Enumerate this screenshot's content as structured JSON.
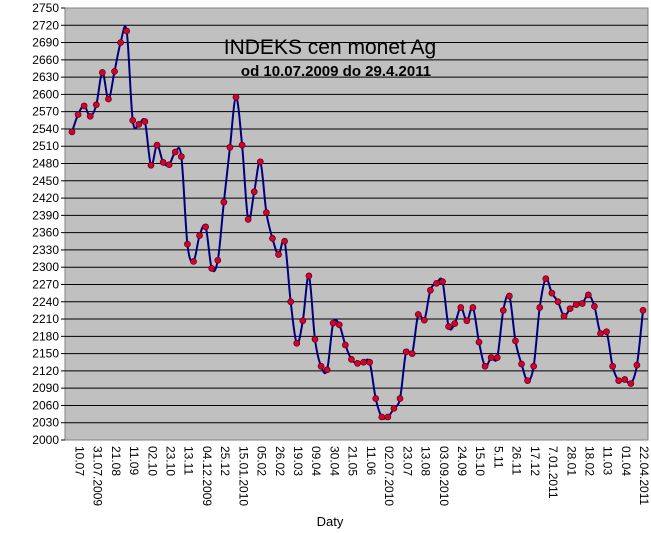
{
  "chart_data": {
    "type": "line",
    "title": "INDEKS cen monet Ag",
    "subtitle": "od 10.07.2009 do 29.4.2011",
    "xlabel": "Daty",
    "ylabel": "",
    "ylim": [
      2000,
      2750
    ],
    "ytick_step": 30,
    "grid": true,
    "legend": "none",
    "x_tick_labels": [
      "10.07",
      "31.07.2009",
      "21.08",
      "11.09",
      "02.10",
      "23.10",
      "13.11",
      "04.12.2009",
      "25.12",
      "15.01.2010",
      "05.02",
      "26.02",
      "19.03",
      "09.04",
      "30.04",
      "21.05",
      "11.06",
      "02.07.2010",
      "23.07",
      "13.08",
      "03.09.2010",
      "24.09",
      "15.10",
      "5.11",
      "26.11",
      "17.12",
      "7.01.2011",
      "28.01",
      "18.02",
      "11.03",
      "01.04",
      "22.04.2011"
    ],
    "series": [
      {
        "values": [
          2535,
          2565,
          2580,
          2562,
          2582,
          2638,
          2592,
          2640,
          2690,
          2710,
          2555,
          2548,
          2553,
          2477,
          2512,
          2482,
          2478,
          2500,
          2492,
          2340,
          2310,
          2355,
          2370,
          2298,
          2312,
          2413,
          2508,
          2595,
          2512,
          2383,
          2431,
          2483,
          2395,
          2350,
          2322,
          2345,
          2240,
          2168,
          2207,
          2285,
          2175,
          2128,
          2122,
          2203,
          2200,
          2165,
          2140,
          2133,
          2135,
          2135,
          2072,
          2040,
          2040,
          2055,
          2072,
          2153,
          2150,
          2218,
          2208,
          2260,
          2272,
          2275,
          2197,
          2202,
          2230,
          2207,
          2230,
          2170,
          2128,
          2143,
          2143,
          2225,
          2250,
          2172,
          2132,
          2103,
          2128,
          2230,
          2280,
          2255,
          2240,
          2215,
          2228,
          2235,
          2237,
          2252,
          2232,
          2185,
          2188,
          2128,
          2103,
          2105,
          2098,
          2130,
          2225
        ]
      }
    ],
    "colors": {
      "line": "#00007f",
      "marker": "#d5002f",
      "plot_bg": "#c0c0c0",
      "grid": "#000000"
    }
  }
}
